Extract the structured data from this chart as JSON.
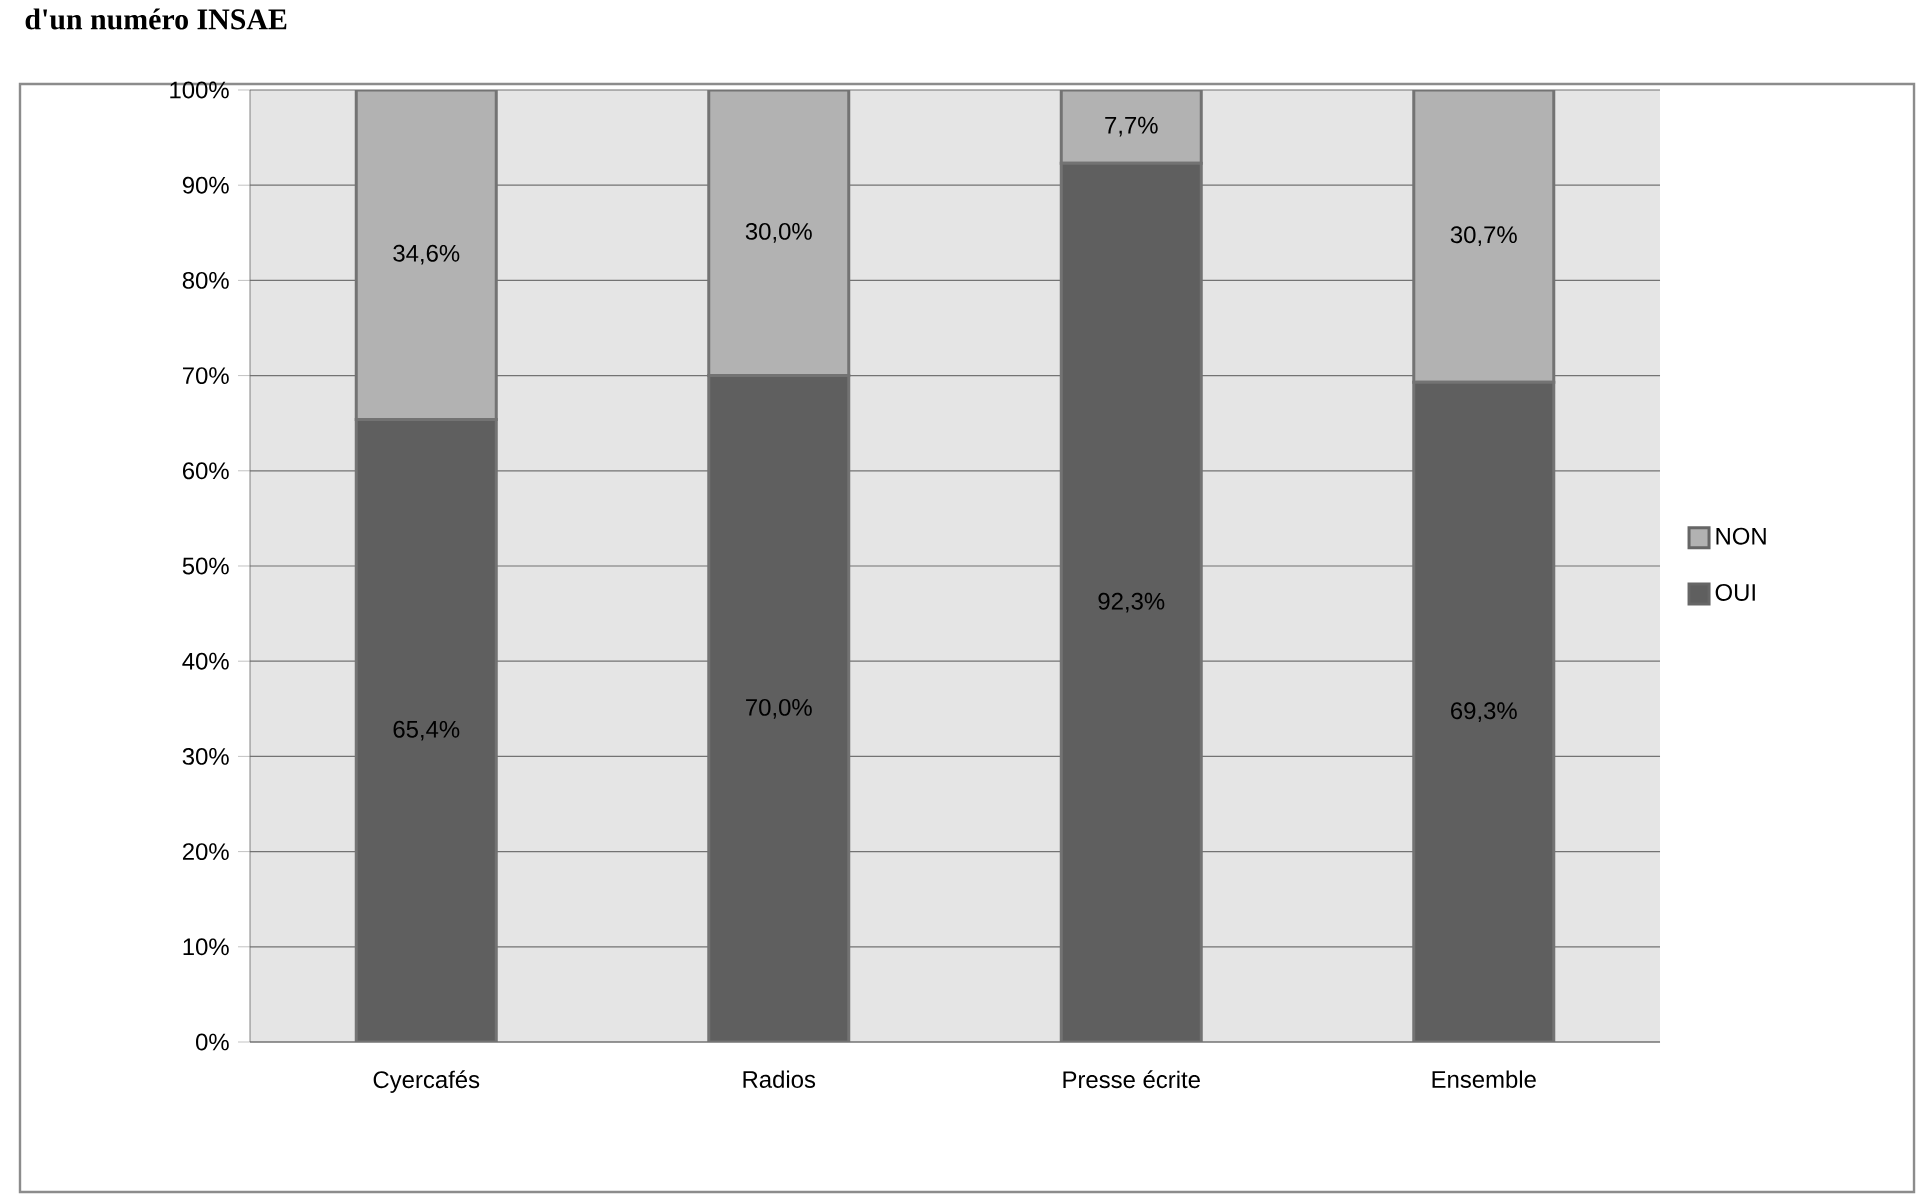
{
  "chart_data": {
    "type": "bar",
    "stacked": true,
    "title": "d'un numéro INSAE",
    "categories": [
      "Cyercafés",
      "Radios",
      "Presse écrite",
      "Ensemble"
    ],
    "series": [
      {
        "name": "OUI",
        "color": "#5f5f5f",
        "values": [
          65.4,
          70.0,
          92.3,
          69.3
        ],
        "value_labels": [
          "65,4%",
          "70,0%",
          "92,3%",
          "69,3%"
        ]
      },
      {
        "name": "NON",
        "color": "#b2b2b2",
        "values": [
          34.6,
          30.0,
          7.7,
          30.7
        ],
        "value_labels": [
          "34,6%",
          "30,0%",
          "7,7%",
          "30,7%"
        ]
      }
    ],
    "ylim": [
      0,
      100
    ],
    "yticks": [
      {
        "value": 0,
        "label": "0%"
      },
      {
        "value": 10,
        "label": "10%"
      },
      {
        "value": 20,
        "label": "20%"
      },
      {
        "value": 30,
        "label": "30%"
      },
      {
        "value": 40,
        "label": "40%"
      },
      {
        "value": 50,
        "label": "50%"
      },
      {
        "value": 60,
        "label": "60%"
      },
      {
        "value": 70,
        "label": "70%"
      },
      {
        "value": 80,
        "label": "80%"
      },
      {
        "value": 90,
        "label": "90%"
      },
      {
        "value": 100,
        "label": "100%"
      }
    ],
    "grid": "y",
    "legend": "right"
  }
}
